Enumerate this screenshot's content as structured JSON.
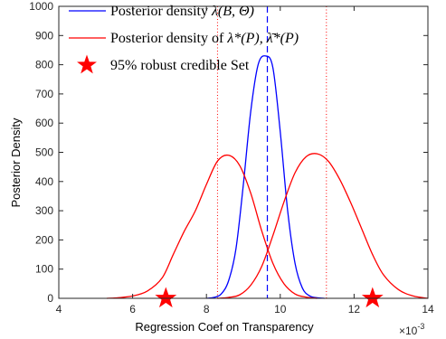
{
  "chart_data": {
    "type": "line",
    "xlabel": "Regression Coef on Transparency",
    "ylabel": "Posterior Density",
    "x_exponent_label": "×10",
    "x_exponent_power": "-3",
    "xlim": [
      4,
      14
    ],
    "ylim": [
      0,
      1000
    ],
    "xticks": [
      "4",
      "6",
      "8",
      "10",
      "12",
      "14"
    ],
    "xtick_values": [
      4,
      6,
      8,
      10,
      12,
      14
    ],
    "yticks": [
      "0",
      "100",
      "200",
      "300",
      "400",
      "500",
      "600",
      "700",
      "800",
      "900",
      "1000"
    ],
    "ytick_values": [
      0,
      100,
      200,
      300,
      400,
      500,
      600,
      700,
      800,
      900,
      1000
    ],
    "grid": false,
    "legend_position": "top-left",
    "legend": [
      {
        "label_prefix": "Posterior density ",
        "math": "λ(B, Θ)",
        "style": "blue-line"
      },
      {
        "label_prefix": "Posterior density of ",
        "math": "λ*(P), λ̄*(P)",
        "style": "red-line"
      },
      {
        "label_prefix": "95% robust credible Set",
        "math": "",
        "style": "red-star"
      }
    ],
    "colors": {
      "blue": "#0000ff",
      "red": "#ff0000",
      "axis": "#262626"
    },
    "series": [
      {
        "name": "Posterior density λ(B, Θ)",
        "color": "#0000ff",
        "x": [
          8.0,
          8.2,
          8.4,
          8.6,
          8.8,
          9.0,
          9.2,
          9.4,
          9.6,
          9.8,
          10.0,
          10.2,
          10.4,
          10.6,
          10.8,
          11.0,
          11.2
        ],
        "y": [
          0,
          3,
          15,
          60,
          170,
          390,
          640,
          800,
          830,
          790,
          570,
          300,
          120,
          35,
          8,
          2,
          0
        ]
      },
      {
        "name": "Posterior density of λ*(P)",
        "color": "#ff0000",
        "x": [
          5.3,
          5.6,
          6.0,
          6.4,
          6.8,
          7.1,
          7.4,
          7.7,
          8.0,
          8.3,
          8.6,
          8.9,
          9.2,
          9.5,
          9.8,
          10.1,
          10.4,
          10.7,
          11.0
        ],
        "y": [
          0,
          2,
          8,
          25,
          70,
          150,
          230,
          300,
          390,
          470,
          490,
          455,
          360,
          230,
          120,
          50,
          15,
          4,
          0
        ]
      },
      {
        "name": "Posterior density of λ̄*(P)",
        "color": "#ff0000",
        "x": [
          8.3,
          8.6,
          8.9,
          9.2,
          9.5,
          9.8,
          10.1,
          10.4,
          10.7,
          11.0,
          11.3,
          11.6,
          11.9,
          12.2,
          12.5,
          12.8,
          13.2,
          13.6,
          14.0
        ],
        "y": [
          0,
          3,
          12,
          45,
          110,
          215,
          330,
          430,
          485,
          495,
          470,
          410,
          330,
          240,
          150,
          80,
          30,
          8,
          0
        ]
      }
    ],
    "vertical_lines": [
      {
        "x": 9.65,
        "color": "#0000ff",
        "style": "dashed"
      },
      {
        "x": 8.3,
        "color": "#ff0000",
        "style": "dotted"
      },
      {
        "x": 11.25,
        "color": "#ff0000",
        "style": "dotted"
      }
    ],
    "markers": [
      {
        "x": 6.9,
        "y": 0,
        "shape": "star",
        "color": "#ff0000"
      },
      {
        "x": 12.5,
        "y": 0,
        "shape": "star",
        "color": "#ff0000"
      }
    ]
  }
}
